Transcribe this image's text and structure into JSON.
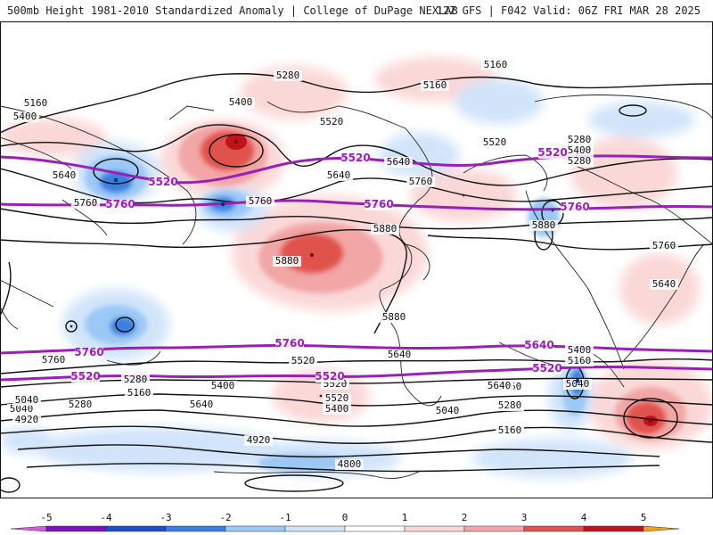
{
  "header": {
    "title_left": "500mb Height 1981-2010 Standardized Anomaly | College of DuPage NEXLAB",
    "title_right": "12Z GFS | F042 Valid: 06Z FRI MAR 28 2025"
  },
  "map": {
    "projection": "cylindrical-global",
    "contour_labels": [
      "5280",
      "5160",
      "5400",
      "5160",
      "5160",
      "5400",
      "5520",
      "5640",
      "5760",
      "5640",
      "5520",
      "5280",
      "5640",
      "5760",
      "5760",
      "5880",
      "5880",
      "5880",
      "5880",
      "5760",
      "5640",
      "5760",
      "5640",
      "5520",
      "5400",
      "5280",
      "5160",
      "5040",
      "4920",
      "4920",
      "4800",
      "5040",
      "5520",
      "5400",
      "5280",
      "5160",
      "5040",
      "5280",
      "5640",
      "5400",
      "5160",
      "5040",
      "5520",
      "5640",
      "5160",
      "5280",
      "5400"
    ],
    "highlight_labels": [
      "5520",
      "5520",
      "5760",
      "5760",
      "5520",
      "5760",
      "5760",
      "5760",
      "5640",
      "5520",
      "5520",
      "5520"
    ],
    "anomaly_centers": [
      {
        "sign": "positive",
        "level": 4
      },
      {
        "sign": "positive",
        "level": 3
      },
      {
        "sign": "positive",
        "level": 3
      },
      {
        "sign": "negative",
        "level": -3
      },
      {
        "sign": "negative",
        "level": -3
      },
      {
        "sign": "negative",
        "level": -3
      },
      {
        "sign": "positive",
        "level": 2
      },
      {
        "sign": "negative",
        "level": -2
      },
      {
        "sign": "negative",
        "level": -2
      },
      {
        "sign": "positive",
        "level": 2
      }
    ]
  },
  "legend": {
    "ticks": [
      "-5",
      "-4",
      "-3",
      "-2",
      "-1",
      "0",
      "1",
      "2",
      "3",
      "4",
      "5"
    ],
    "colors": [
      "#d65ce0",
      "#7a14b5",
      "#1f4fc2",
      "#3a7fe0",
      "#9cc8f5",
      "#cfe3fa",
      "#ffffff",
      "#fbd6d6",
      "#f2a6a6",
      "#e0524e",
      "#c1121c",
      "#f5a21b"
    ]
  },
  "colors": {
    "highlight_contour": "#9a1fb5",
    "contour": "#111111",
    "coastline": "#222222"
  }
}
